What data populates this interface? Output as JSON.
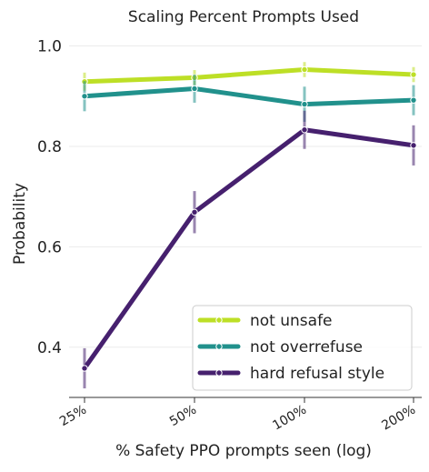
{
  "chart_data": {
    "type": "line",
    "title": "Scaling Percent Prompts Used",
    "xlabel": "% Safety PPO prompts seen (log)",
    "ylabel": "Probability",
    "x_scale": "log",
    "categories": [
      "25%",
      "50%",
      "100%",
      "200%"
    ],
    "ylim": [
      0.3,
      1.03
    ],
    "yticks": [
      0.4,
      0.6,
      0.8,
      1.0
    ],
    "ytick_labels": [
      "0.4",
      "0.6",
      "0.8",
      "1.0"
    ],
    "grid": true,
    "legend_position": "bottom-right",
    "series": [
      {
        "name": "not unsafe",
        "color": "#bddf26",
        "values": [
          0.929,
          0.937,
          0.953,
          0.943
        ],
        "error": [
          0.018,
          0.015,
          0.015,
          0.015
        ]
      },
      {
        "name": "not overrefuse",
        "color": "#21918c",
        "values": [
          0.9,
          0.915,
          0.884,
          0.892
        ],
        "error": [
          0.03,
          0.028,
          0.035,
          0.03
        ]
      },
      {
        "name": "hard refusal style",
        "color": "#46206e",
        "values": [
          0.358,
          0.669,
          0.833,
          0.802
        ],
        "error": [
          0.04,
          0.042,
          0.038,
          0.04
        ]
      }
    ]
  }
}
